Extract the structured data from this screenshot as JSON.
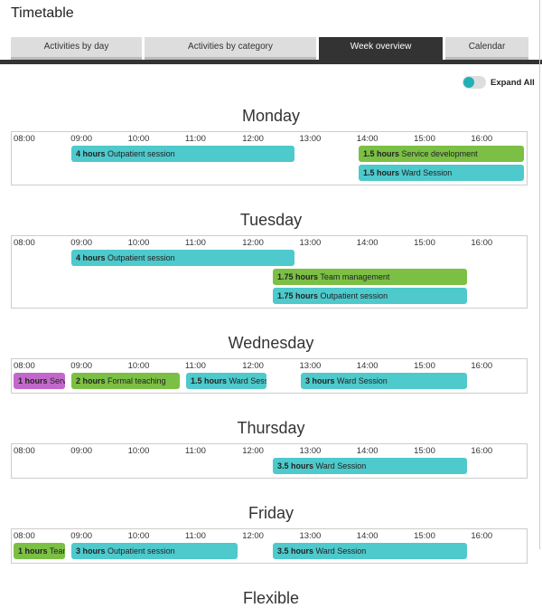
{
  "title": "Timetable",
  "tabs": [
    "Activities by day",
    "Activities by category",
    "Week overview",
    "Calendar"
  ],
  "toggle_label": "Expand All",
  "times": [
    "08:00",
    "09:00",
    "10:00",
    "11:00",
    "12:00",
    "13:00",
    "14:00",
    "15:00",
    "16:00"
  ],
  "days": [
    {
      "name": "Monday",
      "events": [
        {
          "hours": "4 hours",
          "label": "Outpatient session"
        },
        {
          "hours": "1.5 hours",
          "label": "Service development"
        },
        {
          "hours": "1.5 hours",
          "label": "Ward Session"
        }
      ]
    },
    {
      "name": "Tuesday",
      "events": [
        {
          "hours": "4 hours",
          "label": "Outpatient session"
        },
        {
          "hours": "1.75 hours",
          "label": "Team management"
        },
        {
          "hours": "1.75 hours",
          "label": "Outpatient session"
        }
      ]
    },
    {
      "name": "Wednesday",
      "events": [
        {
          "hours": "1 hours",
          "label": "Service development"
        },
        {
          "hours": "2 hours",
          "label": "Formal teaching"
        },
        {
          "hours": "1.5 hours",
          "label": "Ward Session"
        },
        {
          "hours": "3 hours",
          "label": "Ward Session"
        }
      ]
    },
    {
      "name": "Thursday",
      "events": [
        {
          "hours": "3.5 hours",
          "label": "Ward Session"
        }
      ]
    },
    {
      "name": "Friday",
      "events": [
        {
          "hours": "1 hours",
          "label": "Team management"
        },
        {
          "hours": "3 hours",
          "label": "Outpatient session"
        },
        {
          "hours": "3.5 hours",
          "label": "Ward Session"
        }
      ]
    },
    {
      "name": "Flexible",
      "events": []
    }
  ]
}
